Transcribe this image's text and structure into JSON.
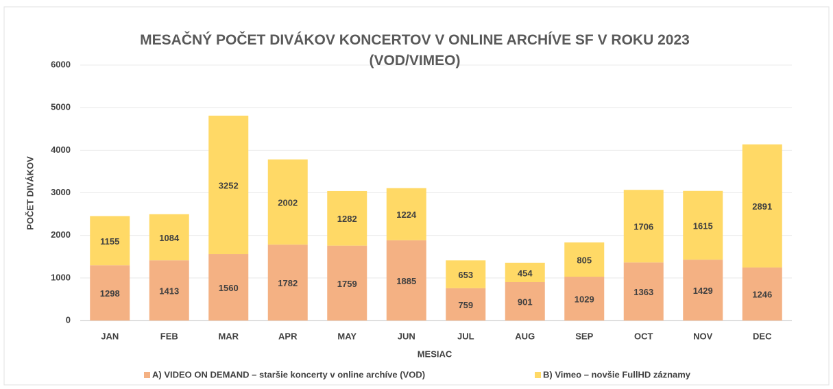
{
  "chart_data": {
    "type": "stacked_bar",
    "title": "MESAČNÝ POČET DIVÁKOV KONCERTOV V ONLINE ARCHÍVE SF V ROKU 2023 (VOD/VIMEO)",
    "x_label": "MESIAC",
    "y_label": "POČET DIVÁKOV",
    "categories": [
      "JAN",
      "FEB",
      "MAR",
      "APR",
      "MAY",
      "JUN",
      "JUL",
      "AUG",
      "SEP",
      "OCT",
      "NOV",
      "DEC"
    ],
    "series": [
      {
        "name": "A) VIDEO ON DEMAND – staršie koncerty v online archíve (VOD)",
        "color": "#f4b183",
        "values": [
          1298,
          1413,
          1560,
          1782,
          1759,
          1885,
          759,
          901,
          1029,
          1363,
          1429,
          1246
        ]
      },
      {
        "name": "B) Vimeo – novšie FullHD záznamy",
        "color": "#ffd966",
        "values": [
          1155,
          1084,
          3252,
          2002,
          1282,
          1224,
          653,
          454,
          805,
          1706,
          1615,
          2891
        ]
      }
    ],
    "ylim": [
      0,
      6000
    ],
    "yticks": [
      0,
      1000,
      2000,
      3000,
      4000,
      5000,
      6000
    ],
    "grid": true,
    "legend": "bottom"
  }
}
